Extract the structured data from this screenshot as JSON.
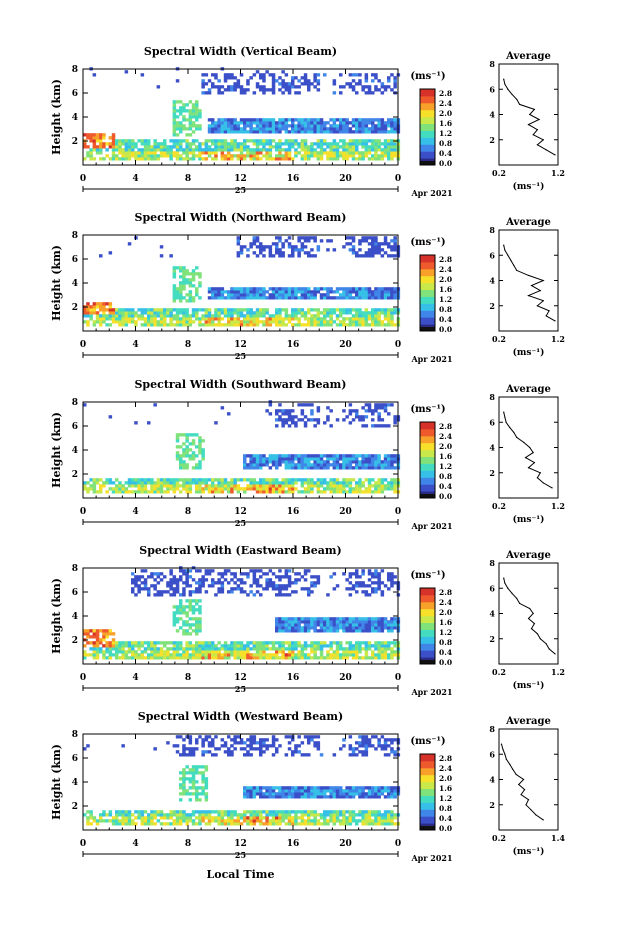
{
  "figure": {
    "bottom_xlabel": "Local Time",
    "date_label": "Apr 2021",
    "day_label": "25",
    "colorbar_unit": "(ms⁻¹)",
    "profile_title": "Average",
    "profile_xlabel": "(ms⁻¹)",
    "ylabel": "Height (km)"
  },
  "colormap": {
    "stops": [
      "#2b2b86",
      "#3a4fc8",
      "#3f86e8",
      "#36c0e8",
      "#44dcc0",
      "#7fe27a",
      "#c9e84a",
      "#f6e02a",
      "#f7a02a",
      "#ee5a2c",
      "#d6322a"
    ],
    "levels": [
      "0.0",
      "0.4",
      "0.8",
      "1.2",
      "1.6",
      "2.0",
      "2.4",
      "2.8"
    ]
  },
  "chart_data": [
    {
      "type": "heatmap",
      "title": "Spectral Width (Vertical Beam)",
      "xlabel": "",
      "ylabel": "Height (km)",
      "xlim": [
        0,
        24
      ],
      "ylim": [
        0,
        8
      ],
      "xticks": [
        "0",
        "4",
        "8",
        "12",
        "16",
        "20",
        "0"
      ],
      "yticks": [
        "2",
        "4",
        "6",
        "8"
      ],
      "colorbar_ticks": [
        "0.0",
        "0.4",
        "0.8",
        "1.2",
        "1.6",
        "2.0",
        "2.4",
        "2.8"
      ],
      "features": {
        "low_layer_top_km": 2.0,
        "mid_layer_km": [
          2.5,
          3.7
        ],
        "mid_layer_start_h": 9.5,
        "high_clouds_km": [
          5.8,
          7.6
        ],
        "high_clouds_start_h": 9.0,
        "plume_start_h": 6.5,
        "early_hot_spot": [
          0,
          2.3,
          2.5
        ]
      },
      "profile": {
        "title": "Average",
        "xlim": [
          0.2,
          1.2
        ],
        "xticks": [
          "0.2",
          "1.2"
        ],
        "ylim": [
          0,
          8
        ],
        "yticks": [
          "2",
          "4",
          "6",
          "8"
        ],
        "heights_km": [
          0.8,
          1.2,
          1.6,
          2.0,
          2.4,
          2.8,
          3.2,
          3.6,
          4.0,
          4.4,
          4.8,
          5.2,
          5.6,
          6.0,
          6.4,
          6.8
        ],
        "values": [
          1.15,
          1.0,
          0.85,
          0.95,
          0.78,
          0.85,
          0.7,
          0.88,
          0.72,
          0.8,
          0.55,
          0.5,
          0.42,
          0.35,
          0.3,
          0.28
        ]
      }
    },
    {
      "type": "heatmap",
      "title": "Spectral Width (Northward Beam)",
      "xlabel": "",
      "ylabel": "Height (km)",
      "xlim": [
        0,
        24
      ],
      "ylim": [
        0,
        8
      ],
      "xticks": [
        "0",
        "4",
        "8",
        "12",
        "16",
        "20",
        "0"
      ],
      "yticks": [
        "2",
        "4",
        "6",
        "8"
      ],
      "colorbar_ticks": [
        "0.0",
        "0.4",
        "0.8",
        "1.2",
        "1.6",
        "2.0",
        "2.4",
        "2.8"
      ],
      "features": {
        "low_layer_top_km": 1.8,
        "mid_layer_km": [
          2.6,
          3.6
        ],
        "mid_layer_start_h": 9.5,
        "high_clouds_km": [
          6.0,
          7.7
        ],
        "high_clouds_start_h": 11.5,
        "plume_start_h": 6.5,
        "early_hot_spot": [
          0,
          1.8,
          2.3
        ]
      },
      "profile": {
        "title": "Average",
        "xlim": [
          0.2,
          1.2
        ],
        "xticks": [
          "0.2",
          "1.2"
        ],
        "ylim": [
          0,
          8
        ],
        "yticks": [
          "2",
          "4",
          "6",
          "8"
        ],
        "heights_km": [
          0.8,
          1.2,
          1.6,
          2.0,
          2.4,
          2.8,
          3.2,
          3.6,
          4.0,
          4.4,
          4.8,
          5.2,
          5.6,
          6.0,
          6.4,
          6.8
        ],
        "values": [
          1.15,
          1.0,
          1.05,
          0.85,
          0.95,
          0.7,
          0.9,
          0.75,
          0.95,
          0.7,
          0.5,
          0.45,
          0.4,
          0.35,
          0.3,
          0.28
        ]
      }
    },
    {
      "type": "heatmap",
      "title": "Spectral Width (Southward Beam)",
      "xlabel": "",
      "ylabel": "Height (km)",
      "xlim": [
        0,
        24
      ],
      "ylim": [
        0,
        8
      ],
      "xticks": [
        "0",
        "4",
        "8",
        "12",
        "16",
        "20",
        "0"
      ],
      "yticks": [
        "2",
        "4",
        "6",
        "8"
      ],
      "colorbar_ticks": [
        "0.0",
        "0.4",
        "0.8",
        "1.2",
        "1.6",
        "2.0",
        "2.4",
        "2.8"
      ],
      "features": {
        "low_layer_top_km": 1.6,
        "mid_layer_km": [
          2.3,
          3.5
        ],
        "mid_layer_start_h": 12.0,
        "high_clouds_km": [
          5.8,
          7.8
        ],
        "high_clouds_start_h": 14.5,
        "plume_start_h": 6.8,
        "early_hot_spot": [
          0,
          1.0,
          1.2
        ]
      },
      "profile": {
        "title": "Average",
        "xlim": [
          0.2,
          1.2
        ],
        "xticks": [
          "0.2",
          "1.2"
        ],
        "ylim": [
          0,
          8
        ],
        "yticks": [
          "2",
          "4",
          "6",
          "8"
        ],
        "heights_km": [
          0.8,
          1.2,
          1.6,
          2.0,
          2.4,
          2.8,
          3.2,
          3.6,
          4.0,
          4.4,
          4.8,
          5.2,
          5.6,
          6.0,
          6.4,
          6.8
        ],
        "values": [
          1.1,
          0.95,
          0.85,
          0.9,
          0.7,
          0.8,
          0.65,
          0.78,
          0.72,
          0.62,
          0.5,
          0.45,
          0.38,
          0.32,
          0.3,
          0.28
        ]
      }
    },
    {
      "type": "heatmap",
      "title": "Spectral Width (Eastward Beam)",
      "xlabel": "",
      "ylabel": "Height (km)",
      "xlim": [
        0,
        24
      ],
      "ylim": [
        0,
        8
      ],
      "xticks": [
        "0",
        "4",
        "8",
        "12",
        "16",
        "20",
        "0"
      ],
      "yticks": [
        "2",
        "4",
        "6",
        "8"
      ],
      "colorbar_ticks": [
        "0.0",
        "0.4",
        "0.8",
        "1.2",
        "1.6",
        "2.0",
        "2.4",
        "2.8"
      ],
      "features": {
        "low_layer_top_km": 1.8,
        "mid_layer_km": [
          2.6,
          3.8
        ],
        "mid_layer_start_h": 14.5,
        "high_clouds_km": [
          5.6,
          7.8
        ],
        "high_clouds_start_h": 3.5,
        "plume_start_h": 6.5,
        "early_hot_spot": [
          0,
          1.8,
          2.8
        ]
      },
      "profile": {
        "title": "Average",
        "xlim": [
          0.2,
          1.2
        ],
        "xticks": [
          "0.2",
          "1.2"
        ],
        "ylim": [
          0,
          8
        ],
        "yticks": [
          "2",
          "4",
          "6",
          "8"
        ],
        "heights_km": [
          0.8,
          1.2,
          1.6,
          2.0,
          2.4,
          2.8,
          3.2,
          3.6,
          4.0,
          4.4,
          4.8,
          5.2,
          5.6,
          6.0,
          6.4,
          6.8
        ],
        "values": [
          1.15,
          1.05,
          1.0,
          0.9,
          0.85,
          0.75,
          0.8,
          0.7,
          0.78,
          0.72,
          0.55,
          0.5,
          0.42,
          0.35,
          0.3,
          0.28
        ]
      }
    },
    {
      "type": "heatmap",
      "title": "Spectral Width (Westward Beam)",
      "xlabel": "Local Time",
      "ylabel": "Height (km)",
      "xlim": [
        0,
        24
      ],
      "ylim": [
        0,
        8
      ],
      "xticks": [
        "0",
        "4",
        "8",
        "12",
        "16",
        "20",
        "0"
      ],
      "yticks": [
        "2",
        "4",
        "6",
        "8"
      ],
      "colorbar_ticks": [
        "0.0",
        "0.4",
        "0.8",
        "1.2",
        "1.6",
        "2.0",
        "2.4",
        "2.8"
      ],
      "features": {
        "low_layer_top_km": 1.6,
        "mid_layer_km": [
          2.5,
          3.5
        ],
        "mid_layer_start_h": 12.0,
        "high_clouds_km": [
          6.0,
          7.8
        ],
        "high_clouds_start_h": 7.0,
        "plume_start_h": 7.0,
        "early_hot_spot": [
          0,
          1.0,
          1.2
        ]
      },
      "profile": {
        "title": "Average",
        "xlim": [
          0.2,
          1.4
        ],
        "xticks": [
          "0.2",
          "1.4"
        ],
        "ylim": [
          0,
          8
        ],
        "yticks": [
          "2",
          "4",
          "6",
          "8"
        ],
        "heights_km": [
          0.8,
          1.2,
          1.6,
          2.0,
          2.4,
          2.8,
          3.2,
          3.6,
          4.0,
          4.4,
          4.8,
          5.2,
          5.6,
          6.0,
          6.4,
          6.8
        ],
        "values": [
          1.1,
          0.95,
          0.85,
          0.75,
          0.8,
          0.65,
          0.72,
          0.6,
          0.7,
          0.55,
          0.48,
          0.42,
          0.35,
          0.32,
          0.28,
          0.25
        ]
      }
    }
  ]
}
